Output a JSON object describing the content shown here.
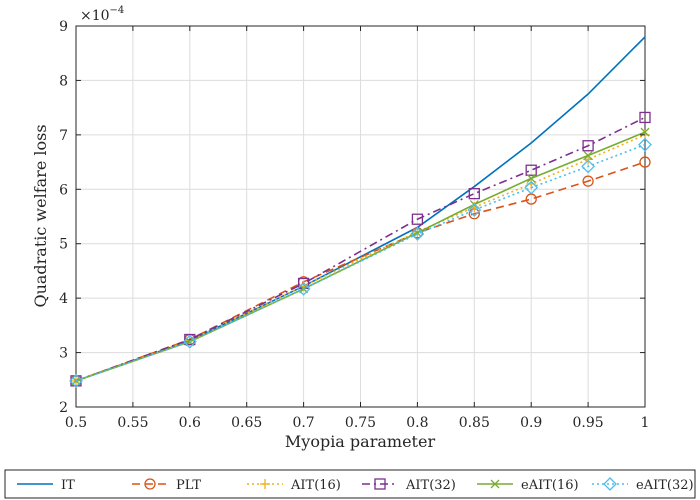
{
  "chart_data": {
    "type": "line",
    "xlabel": "Myopia parameter",
    "ylabel": "Quadratic welfare loss",
    "y_exponent_label": "×10",
    "y_exponent_power": "−4",
    "x_ticks": [
      "0.5",
      "0.55",
      "0.6",
      "0.65",
      "0.7",
      "0.75",
      "0.8",
      "0.85",
      "0.9",
      "0.95",
      "1"
    ],
    "y_ticks": [
      "2",
      "3",
      "4",
      "5",
      "6",
      "7",
      "8",
      "9"
    ],
    "xlim": [
      0.5,
      1.0
    ],
    "ylim": [
      2,
      9
    ],
    "y_scale_factor": 0.0001,
    "grid": true,
    "legend_position": "bottom",
    "x": [
      0.5,
      0.6,
      0.7,
      0.8,
      0.85,
      0.9,
      0.95,
      1.0
    ],
    "series": [
      {
        "name": "IT",
        "color": "#0072BD",
        "dash": "solid",
        "marker": "none",
        "values": [
          2.48,
          3.22,
          4.22,
          5.3,
          6.05,
          6.85,
          7.75,
          8.8
        ]
      },
      {
        "name": "PLT",
        "color": "#D95319",
        "dash": "dashed",
        "marker": "circle",
        "values": [
          2.48,
          3.24,
          4.3,
          5.2,
          5.55,
          5.82,
          6.15,
          6.5
        ]
      },
      {
        "name": "AIT(16)",
        "color": "#EDB120",
        "dash": "dotted",
        "marker": "plus",
        "values": [
          2.48,
          3.22,
          4.22,
          5.22,
          5.67,
          6.1,
          6.55,
          7.0
        ]
      },
      {
        "name": "AIT(32)",
        "color": "#7E2F8E",
        "dash": "dashdot",
        "marker": "square",
        "values": [
          2.48,
          3.24,
          4.27,
          5.45,
          5.92,
          6.35,
          6.8,
          7.32
        ]
      },
      {
        "name": "eAIT(16)",
        "color": "#77AC30",
        "dash": "solid",
        "marker": "x",
        "values": [
          2.48,
          3.2,
          4.17,
          5.2,
          5.72,
          6.2,
          6.62,
          7.05
        ]
      },
      {
        "name": "eAIT(32)",
        "color": "#4DBEEE",
        "dash": "dotted",
        "marker": "diamond",
        "values": [
          2.48,
          3.2,
          4.17,
          5.18,
          5.62,
          6.03,
          6.42,
          6.82
        ]
      }
    ]
  }
}
